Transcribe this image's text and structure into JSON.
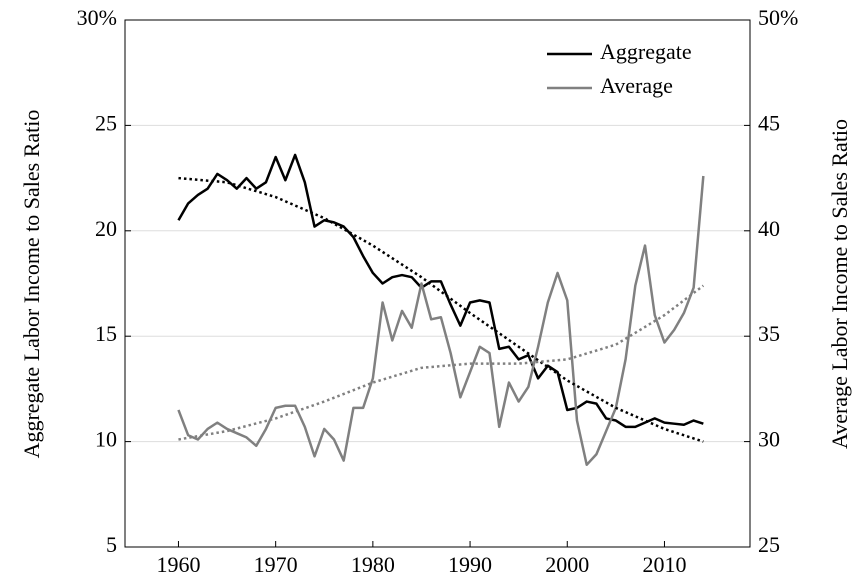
{
  "chart_data": {
    "type": "line",
    "ylabel": "Aggregate Labor Income to Sales Ratio",
    "y2label": "Average Labor Income to Sales Ratio",
    "x": [
      1960,
      1961,
      1962,
      1963,
      1964,
      1965,
      1966,
      1967,
      1968,
      1969,
      1970,
      1971,
      1972,
      1973,
      1974,
      1975,
      1976,
      1977,
      1978,
      1979,
      1980,
      1981,
      1982,
      1983,
      1984,
      1985,
      1986,
      1987,
      1988,
      1989,
      1990,
      1991,
      1992,
      1993,
      1994,
      1995,
      1996,
      1997,
      1998,
      1999,
      2000,
      2001,
      2002,
      2003,
      2004,
      2005,
      2006,
      2007,
      2008,
      2009,
      2010,
      2011,
      2012,
      2013,
      2014
    ],
    "series": [
      {
        "name": "Aggregate",
        "color": "#000000",
        "axis": "y",
        "values": [
          20.5,
          21.3,
          21.7,
          22.0,
          22.7,
          22.4,
          22.0,
          22.5,
          22.0,
          22.3,
          23.5,
          22.4,
          23.6,
          22.3,
          20.2,
          20.5,
          20.4,
          20.2,
          19.7,
          18.8,
          18.0,
          17.5,
          17.8,
          17.9,
          17.8,
          17.3,
          17.6,
          17.6,
          16.5,
          15.5,
          16.6,
          16.7,
          16.6,
          14.4,
          14.5,
          13.9,
          14.1,
          13.0,
          13.6,
          13.3,
          11.5,
          11.6,
          11.9,
          11.8,
          11.1,
          11.0,
          10.7,
          10.7,
          10.9,
          11.1,
          10.9,
          10.85,
          10.8,
          11.0,
          10.85
        ]
      },
      {
        "name": "Average",
        "color": "#808080",
        "axis": "y2",
        "values": [
          31.5,
          30.3,
          30.1,
          30.6,
          30.9,
          30.6,
          30.4,
          30.2,
          29.8,
          30.6,
          31.6,
          31.7,
          31.7,
          30.7,
          29.3,
          30.6,
          30.1,
          29.1,
          31.6,
          31.6,
          33.0,
          36.6,
          34.8,
          36.2,
          35.4,
          37.5,
          35.8,
          35.9,
          34.2,
          32.1,
          33.3,
          34.5,
          34.2,
          30.7,
          32.8,
          31.9,
          32.6,
          34.5,
          36.6,
          38.0,
          36.7,
          31.0,
          28.9,
          29.4,
          30.5,
          31.6,
          33.9,
          37.4,
          39.3,
          36.0,
          34.7,
          35.3,
          36.1,
          37.3,
          42.6
        ]
      },
      {
        "color": "#000000",
        "axis": "y",
        "style": "dotted",
        "x": [
          1960,
          1965,
          1970,
          1975,
          1980,
          1985,
          1990,
          1995,
          2000,
          2005,
          2010,
          2014
        ],
        "values": [
          22.5,
          22.3,
          21.6,
          20.6,
          19.3,
          17.8,
          16.1,
          14.5,
          12.9,
          11.6,
          10.6,
          10.0
        ]
      },
      {
        "color": "#808080",
        "axis": "y2",
        "style": "dotted",
        "x": [
          1960,
          1965,
          1970,
          1975,
          1980,
          1985,
          1990,
          1995,
          2000,
          2005,
          2010,
          2014
        ],
        "values": [
          30.1,
          30.5,
          31.1,
          31.9,
          32.8,
          33.5,
          33.7,
          33.7,
          33.9,
          34.6,
          36.0,
          37.4
        ]
      }
    ],
    "xlim": [
      1954.5,
      2018.8
    ],
    "xticks": [
      1960,
      1970,
      1980,
      1990,
      2000,
      2010
    ],
    "ylim": [
      5,
      30
    ],
    "yticks": [
      5,
      10,
      15,
      20,
      25,
      {
        "value": 30,
        "label": "30%"
      }
    ],
    "y2lim": [
      25,
      50
    ],
    "y2ticks": [
      25,
      30,
      35,
      40,
      45,
      {
        "value": 50,
        "label": "50%"
      }
    ],
    "grid": true,
    "legend": "top-right"
  }
}
